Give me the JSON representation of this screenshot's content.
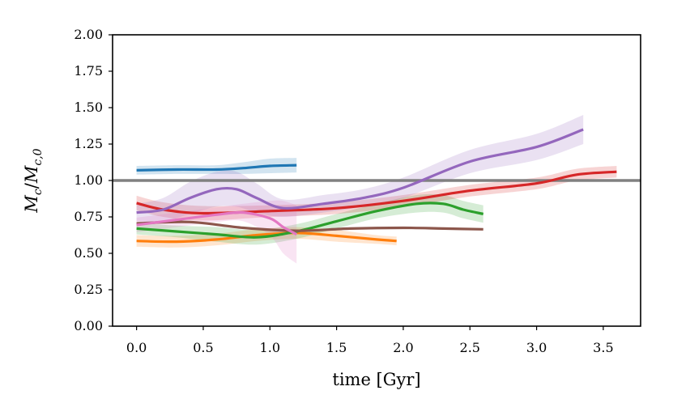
{
  "chart_data": {
    "type": "line",
    "title": "",
    "xlabel": "time [Gyr]",
    "ylabel": {
      "base": "M",
      "num_sub": "c",
      "den_sub": "c,0"
    },
    "xlim": [
      -0.18,
      3.78
    ],
    "ylim": [
      0,
      2
    ],
    "xticks": [
      "0.0",
      "0.5",
      "1.0",
      "1.5",
      "2.0",
      "2.5",
      "3.0",
      "3.5"
    ],
    "yticks": [
      "0.00",
      "0.25",
      "0.50",
      "0.75",
      "1.00",
      "1.25",
      "1.50",
      "1.75",
      "2.00"
    ],
    "reference_line": {
      "y": 1.0,
      "color": "#808080"
    },
    "series": [
      {
        "name": "blue",
        "color": "#1f77b4",
        "x": [
          0,
          0.3,
          0.6,
          0.8,
          1.0,
          1.2
        ],
        "y": [
          1.07,
          1.075,
          1.075,
          1.085,
          1.1,
          1.105
        ],
        "band": [
          0.03,
          0.03,
          0.03,
          0.04,
          0.05,
          0.05
        ]
      },
      {
        "name": "orange",
        "color": "#ff7f0e",
        "x": [
          0,
          0.3,
          0.6,
          0.9,
          1.2,
          1.5,
          1.8,
          1.95
        ],
        "y": [
          0.585,
          0.58,
          0.595,
          0.625,
          0.64,
          0.62,
          0.595,
          0.585
        ],
        "band": [
          0.04,
          0.04,
          0.04,
          0.04,
          0.04,
          0.04,
          0.03,
          0.03
        ]
      },
      {
        "name": "green",
        "color": "#2ca02c",
        "x": [
          0,
          0.3,
          0.6,
          0.9,
          1.2,
          1.5,
          1.8,
          2.1,
          2.3,
          2.45,
          2.6
        ],
        "y": [
          0.67,
          0.65,
          0.63,
          0.61,
          0.65,
          0.72,
          0.79,
          0.84,
          0.84,
          0.8,
          0.77
        ],
        "band": [
          0.04,
          0.04,
          0.05,
          0.05,
          0.05,
          0.05,
          0.05,
          0.06,
          0.06,
          0.06,
          0.06
        ]
      },
      {
        "name": "red",
        "color": "#d62728",
        "x": [
          0,
          0.2,
          0.5,
          1.0,
          1.5,
          2.0,
          2.5,
          3.0,
          3.3,
          3.6
        ],
        "y": [
          0.845,
          0.8,
          0.775,
          0.79,
          0.81,
          0.86,
          0.93,
          0.98,
          1.04,
          1.06
        ],
        "band": [
          0.05,
          0.05,
          0.05,
          0.04,
          0.04,
          0.04,
          0.04,
          0.04,
          0.04,
          0.04
        ]
      },
      {
        "name": "purple",
        "color": "#9467bd",
        "x": [
          0,
          0.2,
          0.4,
          0.6,
          0.75,
          0.9,
          1.1,
          1.4,
          1.7,
          2.0,
          2.5,
          3.0,
          3.35
        ],
        "y": [
          0.78,
          0.8,
          0.88,
          0.94,
          0.94,
          0.88,
          0.81,
          0.84,
          0.88,
          0.95,
          1.13,
          1.23,
          1.35
        ],
        "band": [
          0.06,
          0.08,
          0.11,
          0.12,
          0.12,
          0.1,
          0.06,
          0.06,
          0.06,
          0.07,
          0.08,
          0.09,
          0.1
        ]
      },
      {
        "name": "brown",
        "color": "#8c564b",
        "x": [
          0,
          0.4,
          0.8,
          1.2,
          1.6,
          2.0,
          2.3,
          2.6
        ],
        "y": [
          0.705,
          0.715,
          0.675,
          0.655,
          0.67,
          0.675,
          0.67,
          0.665
        ],
        "band": [
          0,
          0,
          0,
          0,
          0,
          0,
          0,
          0
        ]
      },
      {
        "name": "pink",
        "color": "#e377c2",
        "x": [
          0,
          0.3,
          0.6,
          0.8,
          1.0,
          1.1,
          1.2
        ],
        "y": [
          0.695,
          0.73,
          0.765,
          0.78,
          0.74,
          0.68,
          0.63
        ],
        "band": [
          0.05,
          0.05,
          0.05,
          0.06,
          0.12,
          0.18,
          0.2
        ]
      }
    ]
  }
}
